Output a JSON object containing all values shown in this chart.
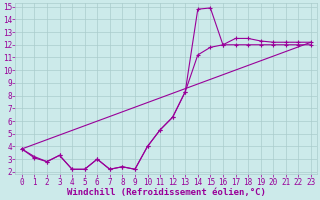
{
  "xlabel": "Windchill (Refroidissement éolien,°C)",
  "bg_color": "#cceaea",
  "line_color": "#990099",
  "grid_color": "#aacccc",
  "xlim": [
    -0.5,
    23.5
  ],
  "ylim": [
    1.8,
    15.3
  ],
  "xticks": [
    0,
    1,
    2,
    3,
    4,
    5,
    6,
    7,
    8,
    9,
    10,
    11,
    12,
    13,
    14,
    15,
    16,
    17,
    18,
    19,
    20,
    21,
    22,
    23
  ],
  "yticks": [
    2,
    3,
    4,
    5,
    6,
    7,
    8,
    9,
    10,
    11,
    12,
    13,
    14,
    15
  ],
  "series1_x": [
    0,
    1,
    2,
    3,
    4,
    5,
    6,
    7,
    8,
    9,
    10,
    11,
    12,
    13,
    14,
    15,
    16,
    17,
    18,
    19,
    20,
    21,
    22,
    23
  ],
  "series1_y": [
    3.8,
    3.2,
    2.8,
    3.3,
    2.2,
    2.2,
    3.0,
    2.2,
    2.4,
    2.2,
    4.0,
    5.3,
    6.3,
    8.3,
    14.8,
    14.9,
    12.0,
    12.0,
    12.0,
    12.0,
    12.0,
    12.0,
    12.0,
    12.0
  ],
  "series2_x": [
    0,
    1,
    2,
    3,
    4,
    5,
    6,
    7,
    8,
    9,
    10,
    11,
    12,
    13,
    14,
    15,
    16,
    17,
    18,
    19,
    20,
    21,
    22,
    23
  ],
  "series2_y": [
    3.8,
    3.1,
    2.8,
    3.3,
    2.2,
    2.2,
    3.0,
    2.2,
    2.4,
    2.2,
    4.0,
    5.3,
    6.3,
    8.3,
    11.2,
    11.8,
    12.0,
    12.5,
    12.5,
    12.3,
    12.2,
    12.2,
    12.2,
    12.2
  ],
  "series3_x": [
    0,
    23
  ],
  "series3_y": [
    3.8,
    12.2
  ],
  "fontsize_label": 6.5,
  "fontsize_tick": 5.5,
  "fontsize_xlabel": 6.5,
  "marker": "+"
}
